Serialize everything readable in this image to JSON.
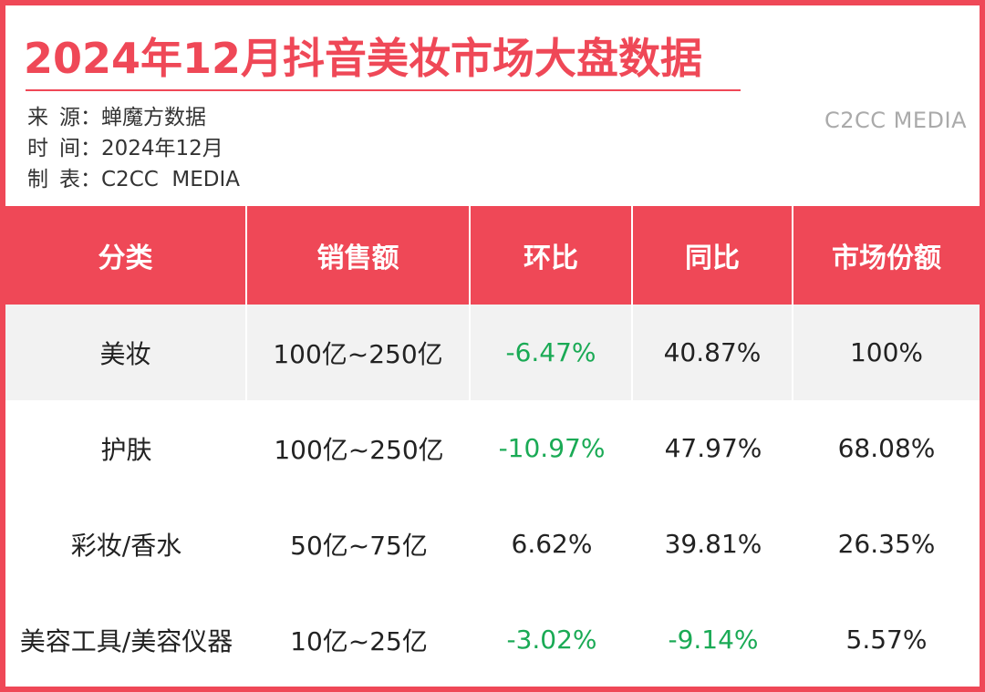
{
  "title": "2024年12月抖音美妆市场大盘数据",
  "meta": {
    "source_label": "来源",
    "source_value": "蝉魔方数据",
    "time_label": "时间",
    "time_value": "2024年12月",
    "maker_label": "制表",
    "maker_value": "C2CC  MEDIA",
    "colon": "："
  },
  "brand": "C2CC MEDIA",
  "colors": {
    "accent": "#ef4857",
    "negative": "#1aaa55",
    "shade": "#f2f2f2"
  },
  "table": {
    "headers": [
      "分类",
      "销售额",
      "环比",
      "同比",
      "市场份额"
    ],
    "rows": [
      {
        "category": "美妆",
        "sales": "100亿~250亿",
        "mom": "-6.47%",
        "yoy": "40.87%",
        "share": "100%"
      },
      {
        "category": "护肤",
        "sales": "100亿~250亿",
        "mom": "-10.97%",
        "yoy": "47.97%",
        "share": "68.08%"
      },
      {
        "category": "彩妆/香水",
        "sales": "50亿~75亿",
        "mom": "6.62%",
        "yoy": "39.81%",
        "share": "26.35%"
      },
      {
        "category": "美容工具/美容仪器",
        "sales": "10亿~25亿",
        "mom": "-3.02%",
        "yoy": "-9.14%",
        "share": "5.57%"
      }
    ]
  }
}
